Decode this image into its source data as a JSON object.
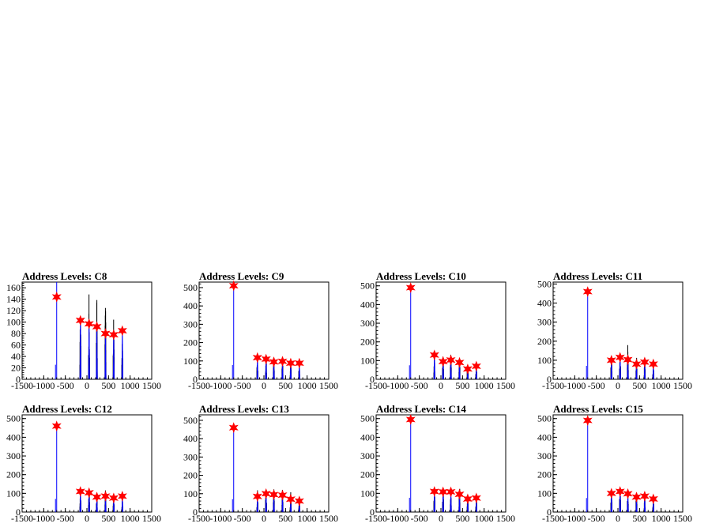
{
  "figure": {
    "background": "#ffffff",
    "colors": {
      "histogram": "#000000",
      "fit": "#0000ff",
      "marker": "#ff0000"
    },
    "marker_symbol": "star"
  },
  "chart_data": [
    {
      "type": "bar",
      "title": "Address Levels: C8",
      "xlim": [
        -1500,
        1500
      ],
      "ylim": [
        0,
        170
      ],
      "xticks": [
        "-1500",
        "-1000",
        "-500",
        "0",
        "500",
        "1000",
        "1500"
      ],
      "yticks": [
        "0",
        "20",
        "40",
        "60",
        "80",
        "100",
        "120",
        "140",
        "160"
      ],
      "peak_spikes": [
        [
          -700,
          170
        ],
        [
          -150,
          128
        ],
        [
          50,
          155
        ],
        [
          230,
          145
        ],
        [
          430,
          135
        ],
        [
          620,
          108
        ],
        [
          820,
          88
        ]
      ],
      "markers": [
        [
          -700,
          144
        ],
        [
          -150,
          103
        ],
        [
          50,
          97
        ],
        [
          230,
          92
        ],
        [
          430,
          80
        ],
        [
          620,
          78
        ],
        [
          820,
          85
        ]
      ]
    },
    {
      "type": "bar",
      "title": "Address Levels: C9",
      "xlim": [
        -1500,
        1500
      ],
      "ylim": [
        0,
        530
      ],
      "xticks": [
        "-1500",
        "-1000",
        "-500",
        "0",
        "500",
        "1000",
        "1500"
      ],
      "yticks": [
        "0",
        "100",
        "200",
        "300",
        "400",
        "500"
      ],
      "peak_spikes": [
        [
          -700,
          520
        ],
        [
          -150,
          140
        ],
        [
          50,
          145
        ],
        [
          230,
          140
        ],
        [
          430,
          140
        ],
        [
          620,
          120
        ],
        [
          820,
          100
        ]
      ],
      "markers": [
        [
          -700,
          510
        ],
        [
          -150,
          118
        ],
        [
          50,
          110
        ],
        [
          230,
          95
        ],
        [
          430,
          98
        ],
        [
          620,
          88
        ],
        [
          820,
          88
        ]
      ]
    },
    {
      "type": "bar",
      "title": "Address Levels: C10",
      "xlim": [
        -1500,
        1500
      ],
      "ylim": [
        0,
        520
      ],
      "xticks": [
        "-1500",
        "-1000",
        "-500",
        "0",
        "500",
        "1000",
        "1500"
      ],
      "yticks": [
        "0",
        "100",
        "200",
        "300",
        "400",
        "500"
      ],
      "peak_spikes": [
        [
          -700,
          500
        ],
        [
          -150,
          140
        ],
        [
          50,
          135
        ],
        [
          230,
          145
        ],
        [
          430,
          125
        ],
        [
          620,
          110
        ],
        [
          820,
          85
        ]
      ],
      "markers": [
        [
          -700,
          490
        ],
        [
          -150,
          130
        ],
        [
          50,
          95
        ],
        [
          230,
          103
        ],
        [
          430,
          90
        ],
        [
          620,
          55
        ],
        [
          820,
          70
        ]
      ]
    },
    {
      "type": "bar",
      "title": "Address Levels: C11",
      "xlim": [
        -1500,
        1500
      ],
      "ylim": [
        0,
        510
      ],
      "xticks": [
        "-1500",
        "-1000",
        "-500",
        "0",
        "500",
        "1000",
        "1500"
      ],
      "yticks": [
        "0",
        "100",
        "200",
        "300",
        "400",
        "500"
      ],
      "peak_spikes": [
        [
          -700,
          470
        ],
        [
          -150,
          140
        ],
        [
          50,
          140
        ],
        [
          230,
          195
        ],
        [
          430,
          130
        ],
        [
          620,
          110
        ],
        [
          820,
          90
        ]
      ],
      "markers": [
        [
          -700,
          460
        ],
        [
          -150,
          100
        ],
        [
          50,
          115
        ],
        [
          230,
          103
        ],
        [
          430,
          80
        ],
        [
          620,
          90
        ],
        [
          820,
          80
        ]
      ]
    },
    {
      "type": "bar",
      "title": "Address Levels: C12",
      "xlim": [
        -1500,
        1500
      ],
      "ylim": [
        0,
        520
      ],
      "xticks": [
        "-1500",
        "-1000",
        "-500",
        "0",
        "500",
        "1000",
        "1500"
      ],
      "yticks": [
        "0",
        "100",
        "200",
        "300",
        "400",
        "500"
      ],
      "peak_spikes": [
        [
          -700,
          470
        ],
        [
          -150,
          130
        ],
        [
          50,
          135
        ],
        [
          230,
          125
        ],
        [
          430,
          135
        ],
        [
          620,
          100
        ],
        [
          820,
          95
        ]
      ],
      "markers": [
        [
          -700,
          460
        ],
        [
          -150,
          110
        ],
        [
          50,
          103
        ],
        [
          230,
          80
        ],
        [
          430,
          85
        ],
        [
          620,
          75
        ],
        [
          820,
          85
        ]
      ]
    },
    {
      "type": "bar",
      "title": "Address Levels: C13",
      "xlim": [
        -1500,
        1500
      ],
      "ylim": [
        0,
        530
      ],
      "xticks": [
        "-1500",
        "-1000",
        "-500",
        "0",
        "500",
        "1000",
        "1500"
      ],
      "yticks": [
        "0",
        "100",
        "200",
        "300",
        "400",
        "500"
      ],
      "peak_spikes": [
        [
          -700,
          470
        ],
        [
          -150,
          120
        ],
        [
          50,
          140
        ],
        [
          230,
          130
        ],
        [
          430,
          130
        ],
        [
          620,
          110
        ],
        [
          820,
          90
        ]
      ],
      "markers": [
        [
          -700,
          460
        ],
        [
          -150,
          85
        ],
        [
          50,
          100
        ],
        [
          230,
          95
        ],
        [
          430,
          92
        ],
        [
          620,
          70
        ],
        [
          820,
          60
        ]
      ]
    },
    {
      "type": "bar",
      "title": "Address Levels: C14",
      "xlim": [
        -1500,
        1500
      ],
      "ylim": [
        0,
        520
      ],
      "xticks": [
        "-1500",
        "-1000",
        "-500",
        "0",
        "500",
        "1000",
        "1500"
      ],
      "yticks": [
        "0",
        "100",
        "200",
        "300",
        "400",
        "500"
      ],
      "peak_spikes": [
        [
          -700,
          510
        ],
        [
          -150,
          130
        ],
        [
          50,
          140
        ],
        [
          230,
          130
        ],
        [
          430,
          160
        ],
        [
          620,
          110
        ],
        [
          820,
          90
        ]
      ],
      "markers": [
        [
          -700,
          495
        ],
        [
          -150,
          110
        ],
        [
          50,
          108
        ],
        [
          230,
          108
        ],
        [
          430,
          95
        ],
        [
          620,
          70
        ],
        [
          820,
          75
        ]
      ]
    },
    {
      "type": "bar",
      "title": "Address Levels: C15",
      "xlim": [
        -1500,
        1500
      ],
      "ylim": [
        0,
        520
      ],
      "xticks": [
        "-1500",
        "-1000",
        "-500",
        "0",
        "500",
        "1000",
        "1500"
      ],
      "yticks": [
        "0",
        "100",
        "200",
        "300",
        "400",
        "500"
      ],
      "peak_spikes": [
        [
          -700,
          500
        ],
        [
          -150,
          130
        ],
        [
          50,
          145
        ],
        [
          230,
          135
        ],
        [
          430,
          130
        ],
        [
          620,
          105
        ],
        [
          820,
          85
        ]
      ],
      "markers": [
        [
          -700,
          490
        ],
        [
          -150,
          100
        ],
        [
          50,
          110
        ],
        [
          230,
          98
        ],
        [
          430,
          80
        ],
        [
          620,
          85
        ],
        [
          820,
          70
        ]
      ]
    }
  ]
}
